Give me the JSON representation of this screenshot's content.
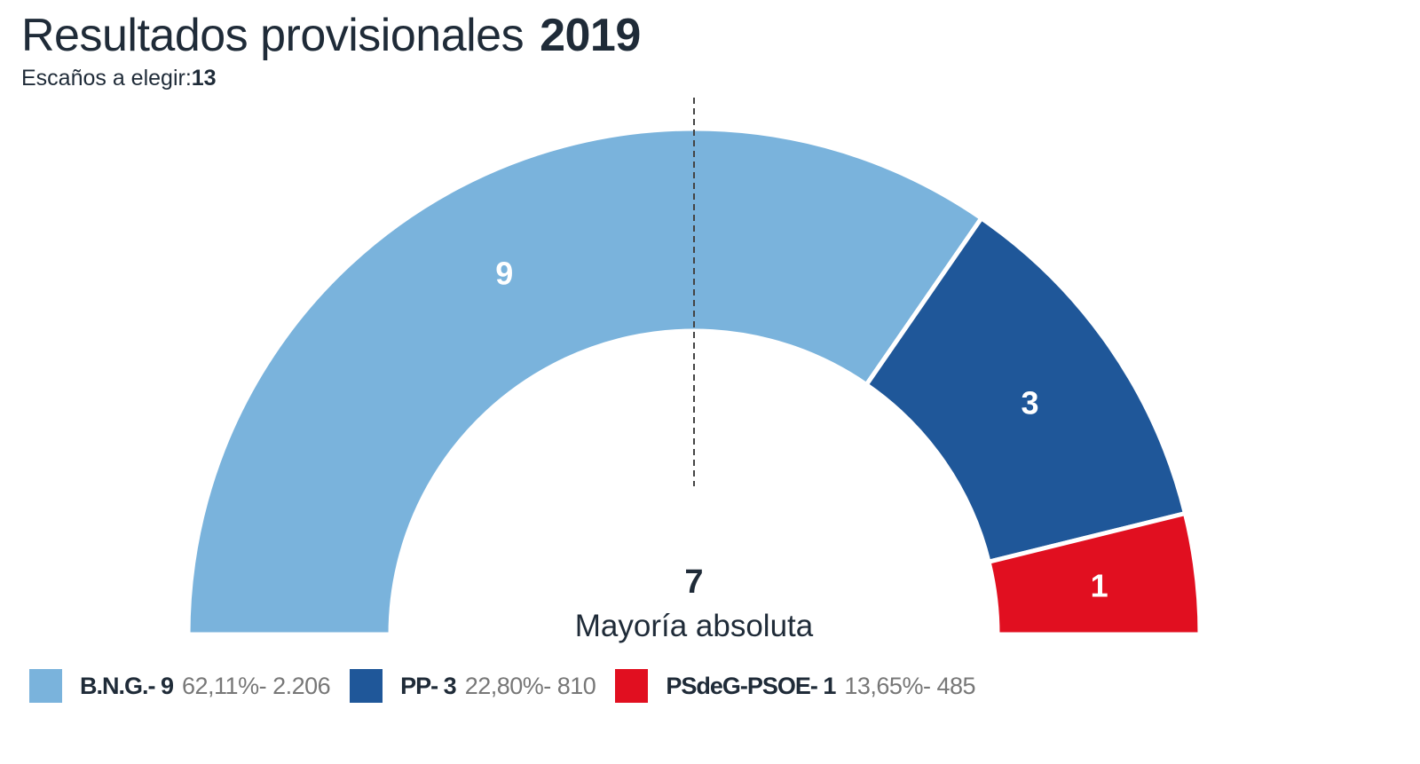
{
  "chart_data": {
    "type": "parliament",
    "title": "Resultados provisionales",
    "year": "2019",
    "subtitle_label": "Escaños a elegir:",
    "total_seats": "13",
    "majority_value": "7",
    "majority_label": "Mayoría absoluta",
    "series": [
      {
        "name": "B.NG.-",
        "seats": 9,
        "seats_label": "9",
        "percent": "62,11%",
        "votes": "2.206",
        "color": "#7ab3dc",
        "legend_name": "B.N.G.- 9",
        "legend_value": "62,11%- 2.206"
      },
      {
        "name": "PP-",
        "seats": 3,
        "seats_label": "3",
        "percent": "22,80%",
        "votes": "810",
        "color": "#1f5799",
        "legend_name": "PP- 3",
        "legend_value": "22,80%- 810"
      },
      {
        "name": "PSdeG-PSOE-",
        "seats": 1,
        "seats_label": "1",
        "percent": "13,65%",
        "votes": "485",
        "color": "#e10f20",
        "legend_name": "PSdeG-PSOE- 1",
        "legend_value": "13,65%- 485"
      }
    ],
    "majority_line": "dashed",
    "legend_placement": "bottom"
  }
}
